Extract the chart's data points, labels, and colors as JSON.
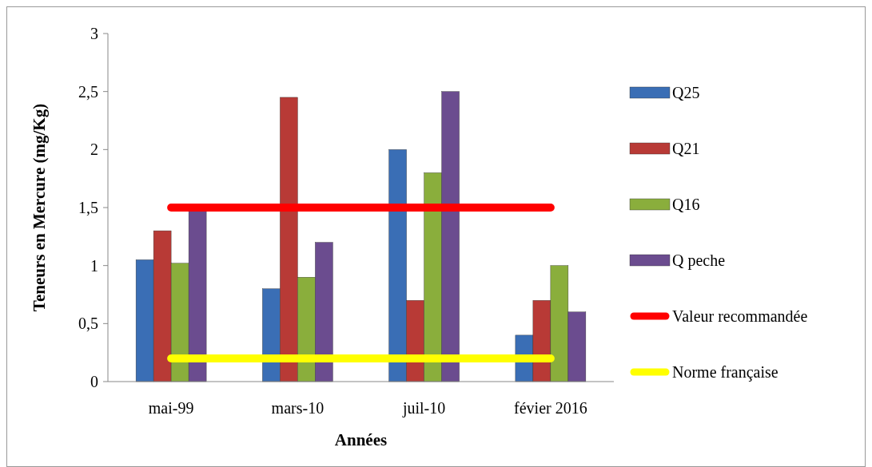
{
  "chart_data": {
    "type": "bar",
    "xlabel": "Années",
    "ylabel": "Teneurs en Mercure (mg/Kg)",
    "categories": [
      "mai-99",
      "mars-10",
      "juil-10",
      "févier 2016"
    ],
    "series": [
      {
        "name": "Q25",
        "color": "#3a6eb5",
        "values": [
          1.05,
          0.8,
          2.0,
          0.4
        ]
      },
      {
        "name": "Q21",
        "color": "#b83a36",
        "values": [
          1.3,
          2.45,
          0.7,
          0.7
        ]
      },
      {
        "name": "Q16",
        "color": "#8aae3c",
        "values": [
          1.02,
          0.9,
          1.8,
          1.0
        ]
      },
      {
        "name": "Q peche",
        "color": "#6b4c8f",
        "values": [
          1.47,
          1.2,
          2.5,
          0.6
        ]
      },
      {
        "name": "Valeur recommandée",
        "type": "line",
        "color": "#ff0000",
        "values": [
          1.5,
          1.5,
          1.5,
          1.5
        ]
      },
      {
        "name": "Norme française",
        "type": "line",
        "color": "#ffff00",
        "values": [
          0.2,
          0.2,
          0.2,
          0.2
        ]
      }
    ],
    "ylim": [
      0,
      3
    ],
    "yticks": [
      0,
      {
        "value": 0.5,
        "label": "0,5"
      },
      1,
      {
        "value": 1.5,
        "label": "1,5"
      },
      2,
      {
        "value": 2.5,
        "label": "2,5"
      },
      3
    ],
    "grid": false,
    "legend": "right",
    "marker": "none",
    "line_style": "solid"
  }
}
